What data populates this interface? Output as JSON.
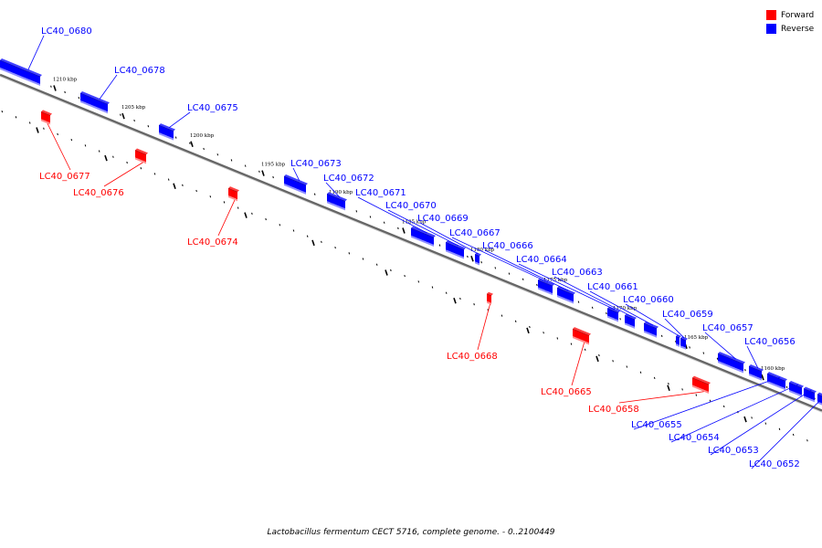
{
  "caption": "Lactobacillus fermentum CECT 5716, complete genome. - 0..2100449",
  "legend": [
    {
      "label": "Forward",
      "color": "#ff0000"
    },
    {
      "label": "Reverse",
      "color": "#0000ff"
    }
  ],
  "colors": {
    "forward": "#ff0000",
    "reverse": "#0000ff",
    "axis": "#666666"
  },
  "ticks": [
    "1210 kbp",
    "1205 kbp",
    "1200 kbp",
    "1195 kbp",
    "1190 kbp",
    "1185 kbp",
    "1180 kbp",
    "1175 kbp",
    "1170 kbp",
    "1165 kbp",
    "1160 kbp"
  ],
  "genes": [
    {
      "name": "LC40_0680",
      "strand": "reverse"
    },
    {
      "name": "LC40_0678",
      "strand": "reverse"
    },
    {
      "name": "LC40_0677",
      "strand": "forward"
    },
    {
      "name": "LC40_0676",
      "strand": "forward"
    },
    {
      "name": "LC40_0675",
      "strand": "reverse"
    },
    {
      "name": "LC40_0674",
      "strand": "forward"
    },
    {
      "name": "LC40_0673",
      "strand": "reverse"
    },
    {
      "name": "LC40_0672",
      "strand": "reverse"
    },
    {
      "name": "LC40_0671",
      "strand": "reverse"
    },
    {
      "name": "LC40_0670",
      "strand": "reverse"
    },
    {
      "name": "LC40_0669",
      "strand": "reverse"
    },
    {
      "name": "LC40_0668",
      "strand": "forward"
    },
    {
      "name": "LC40_0667",
      "strand": "reverse"
    },
    {
      "name": "LC40_0666",
      "strand": "reverse"
    },
    {
      "name": "LC40_0665",
      "strand": "forward"
    },
    {
      "name": "LC40_0664",
      "strand": "reverse"
    },
    {
      "name": "LC40_0663",
      "strand": "reverse"
    },
    {
      "name": "LC40_0661",
      "strand": "reverse"
    },
    {
      "name": "LC40_0660",
      "strand": "reverse"
    },
    {
      "name": "LC40_0659",
      "strand": "reverse"
    },
    {
      "name": "LC40_0658",
      "strand": "forward"
    },
    {
      "name": "LC40_0657",
      "strand": "reverse"
    },
    {
      "name": "LC40_0656",
      "strand": "reverse"
    },
    {
      "name": "LC40_0655",
      "strand": "reverse"
    },
    {
      "name": "LC40_0654",
      "strand": "reverse"
    },
    {
      "name": "LC40_0653",
      "strand": "reverse"
    },
    {
      "name": "LC40_0652",
      "strand": "reverse"
    }
  ]
}
